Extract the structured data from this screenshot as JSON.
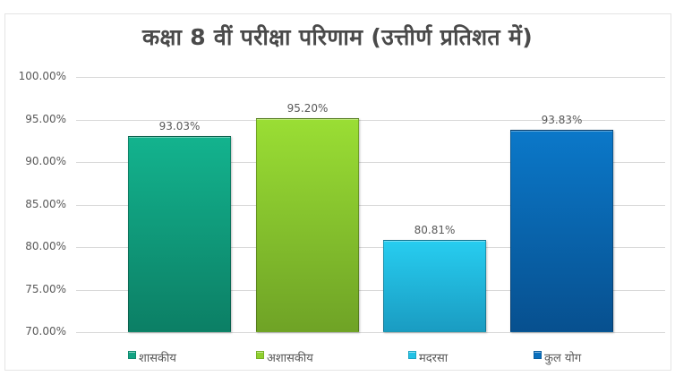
{
  "chart_data": {
    "type": "bar",
    "title": "कक्षा 8 वीं परीक्षा परिणाम (उत्तीर्ण प्रतिशत में)",
    "xlabel": "",
    "ylabel": "",
    "ylim": [
      0.7,
      1.0
    ],
    "grid": true,
    "legend_position": "bottom",
    "yticks": [
      "100.00%",
      "95.00%",
      "90.00%",
      "85.00%",
      "80.00%",
      "75.00%",
      "70.00%"
    ],
    "categories": [
      "शासकीय",
      "अशासकीय",
      "मदरसा",
      "कुल योग"
    ],
    "values": [
      93.03,
      95.2,
      80.81,
      93.83
    ],
    "data_labels": [
      "93.03%",
      "95.20%",
      "80.81%",
      "93.83%"
    ],
    "colors": [
      "#13a383",
      "#8fd02e",
      "#22c2e6",
      "#0a6fbd"
    ]
  },
  "legend": [
    {
      "label": "शासकीय",
      "color": "#13a383"
    },
    {
      "label": "अशासकीय",
      "color": "#8fd02e"
    },
    {
      "label": "मदरसा",
      "color": "#22c2e6"
    },
    {
      "label": "कुल योग",
      "color": "#0a6fbd"
    }
  ]
}
